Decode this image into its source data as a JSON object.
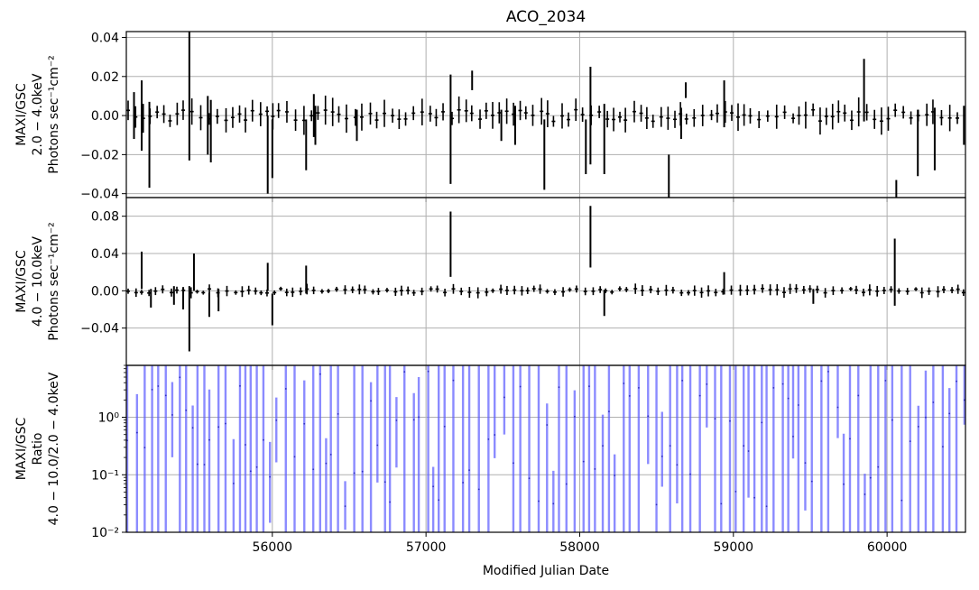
{
  "figure": {
    "title": "ACO_2034",
    "xlabel": "Modified Julian Date",
    "x_ticks": [
      56000,
      57000,
      58000,
      59000,
      60000
    ],
    "xlim": [
      55050,
      60510
    ]
  },
  "chart_data": [
    {
      "type": "line",
      "panel": "top",
      "ylabel_lines": [
        "MAXI/GSC",
        "2.0 − 4.0keV",
        "Photons sec⁻¹cm⁻²"
      ],
      "xlim": [
        55050,
        60510
      ],
      "ylim": [
        -0.042,
        0.043
      ],
      "y_ticks": [
        -0.04,
        -0.02,
        0.0,
        0.02,
        0.04
      ],
      "y_tick_labels": [
        "−0.04",
        "−0.02",
        "0.00",
        "0.02",
        "0.04"
      ],
      "grid": true,
      "color": "#000000",
      "noise_amplitude": 0.005,
      "spikes": [
        {
          "x": 55100,
          "y": 0.0,
          "err": 0.012
        },
        {
          "x": 55150,
          "y": 0.0,
          "err": 0.018
        },
        {
          "x": 55200,
          "y": -0.015,
          "err": 0.022
        },
        {
          "x": 55460,
          "y": 0.012,
          "err": 0.035
        },
        {
          "x": 55580,
          "y": -0.005,
          "err": 0.015
        },
        {
          "x": 55600,
          "y": -0.008,
          "err": 0.016
        },
        {
          "x": 55970,
          "y": -0.02,
          "err": 0.02
        },
        {
          "x": 56000,
          "y": -0.017,
          "err": 0.015
        },
        {
          "x": 56220,
          "y": -0.015,
          "err": 0.013
        },
        {
          "x": 56270,
          "y": 0.0,
          "err": 0.011
        },
        {
          "x": 56280,
          "y": -0.005,
          "err": 0.01
        },
        {
          "x": 56550,
          "y": -0.005,
          "err": 0.008
        },
        {
          "x": 57160,
          "y": -0.007,
          "err": 0.028
        },
        {
          "x": 57300,
          "y": 0.018,
          "err": 0.005
        },
        {
          "x": 57490,
          "y": -0.005,
          "err": 0.008
        },
        {
          "x": 57580,
          "y": -0.005,
          "err": 0.01
        },
        {
          "x": 57770,
          "y": -0.02,
          "err": 0.018
        },
        {
          "x": 58040,
          "y": -0.016,
          "err": 0.014
        },
        {
          "x": 58070,
          "y": 0.0,
          "err": 0.025
        },
        {
          "x": 58160,
          "y": -0.012,
          "err": 0.018
        },
        {
          "x": 58580,
          "y": -0.032,
          "err": 0.012
        },
        {
          "x": 58660,
          "y": -0.004,
          "err": 0.008
        },
        {
          "x": 58690,
          "y": 0.013,
          "err": 0.004
        },
        {
          "x": 58940,
          "y": 0.006,
          "err": 0.012
        },
        {
          "x": 59850,
          "y": 0.013,
          "err": 0.016
        },
        {
          "x": 60060,
          "y": -0.039,
          "err": 0.006
        },
        {
          "x": 60200,
          "y": -0.014,
          "err": 0.017
        },
        {
          "x": 60310,
          "y": -0.012,
          "err": 0.016
        },
        {
          "x": 60500,
          "y": -0.005,
          "err": 0.01
        }
      ]
    },
    {
      "type": "line",
      "panel": "middle",
      "ylabel_lines": [
        "MAXI/GSC",
        "4.0 − 10.0keV",
        "Photons sec⁻¹cm⁻²"
      ],
      "xlim": [
        55050,
        60510
      ],
      "ylim": [
        -0.08,
        0.1
      ],
      "y_ticks": [
        -0.04,
        0.0,
        0.04,
        0.08
      ],
      "y_tick_labels": [
        "−0.04",
        "0.00",
        "0.04",
        "0.08"
      ],
      "grid": true,
      "color": "#000000",
      "noise_amplitude": 0.004,
      "spikes": [
        {
          "x": 55150,
          "y": 0.022,
          "err": 0.02
        },
        {
          "x": 55210,
          "y": -0.008,
          "err": 0.01
        },
        {
          "x": 55360,
          "y": -0.005,
          "err": 0.01
        },
        {
          "x": 55420,
          "y": -0.008,
          "err": 0.012
        },
        {
          "x": 55460,
          "y": -0.03,
          "err": 0.035
        },
        {
          "x": 55490,
          "y": 0.02,
          "err": 0.02
        },
        {
          "x": 55590,
          "y": -0.015,
          "err": 0.013
        },
        {
          "x": 55650,
          "y": -0.01,
          "err": 0.012
        },
        {
          "x": 55970,
          "y": 0.015,
          "err": 0.015
        },
        {
          "x": 56000,
          "y": -0.02,
          "err": 0.017
        },
        {
          "x": 56220,
          "y": 0.012,
          "err": 0.015
        },
        {
          "x": 57160,
          "y": 0.05,
          "err": 0.035
        },
        {
          "x": 58070,
          "y": 0.058,
          "err": 0.033
        },
        {
          "x": 58160,
          "y": -0.013,
          "err": 0.014
        },
        {
          "x": 58940,
          "y": 0.008,
          "err": 0.012
        },
        {
          "x": 59520,
          "y": -0.006,
          "err": 0.008
        },
        {
          "x": 60050,
          "y": 0.02,
          "err": 0.036
        }
      ]
    },
    {
      "type": "scatter",
      "panel": "bottom",
      "ylabel_lines": [
        "MAXI/GSC",
        "Ratio",
        "4.0 − 10.0/2.0 − 4.0keV"
      ],
      "xlim": [
        55050,
        60510
      ],
      "y_scale": "log",
      "ylim": [
        0.01,
        8.0
      ],
      "y_ticks": [
        0.01,
        0.1,
        1.0
      ],
      "y_tick_labels": [
        "10⁻²",
        "10⁻¹",
        "10⁰"
      ],
      "grid": true,
      "color": "#5a5aff",
      "point_spacing": 9.5
    }
  ]
}
